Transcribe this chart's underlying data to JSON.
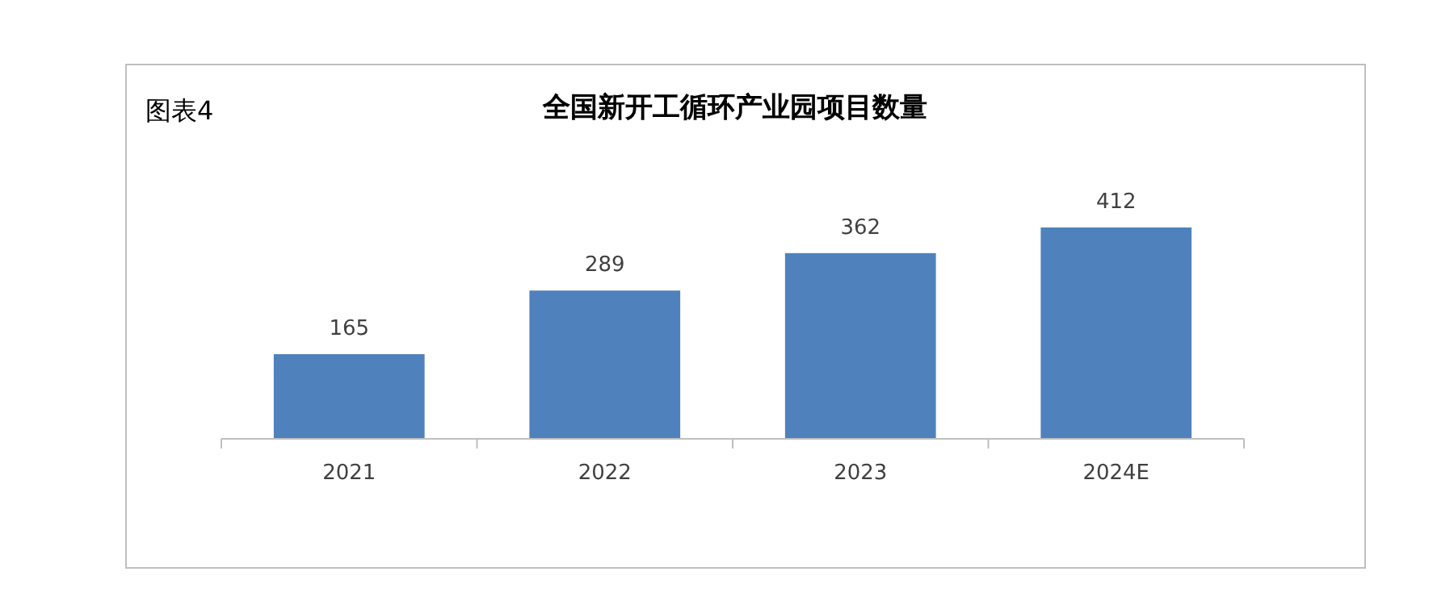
{
  "chart_data": {
    "type": "bar",
    "title": "全国新开工循环产业园项目数量",
    "annotations": [
      "图表4"
    ],
    "categories": [
      "2021",
      "2022",
      "2023",
      "2024E"
    ],
    "values": [
      165,
      289,
      362,
      412
    ],
    "color": "#4f81bd",
    "data_labels": true
  }
}
